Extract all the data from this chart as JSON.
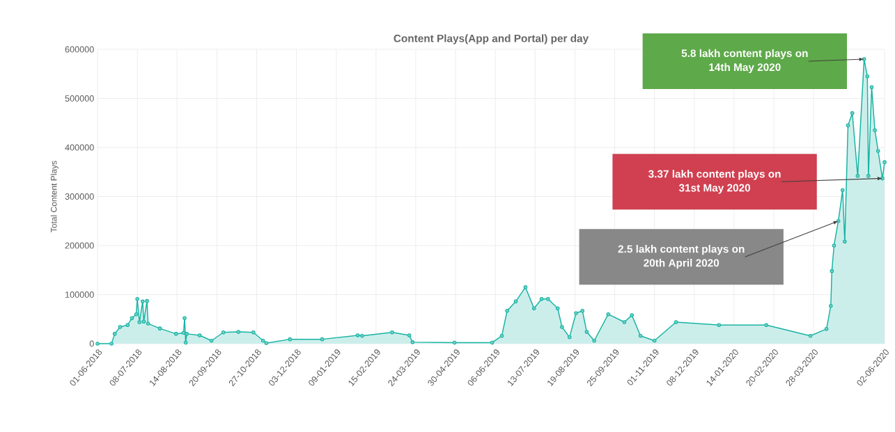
{
  "chart_data": {
    "type": "area",
    "title": "Content Plays(App and Portal) per day",
    "ylabel": "Total Content Plays",
    "x": [
      "2018-06-01",
      "2018-06-14",
      "2018-06-17",
      "2018-06-22",
      "2018-06-29",
      "2018-07-03",
      "2018-07-07",
      "2018-07-08",
      "2018-07-10",
      "2018-07-13",
      "2018-07-14",
      "2018-07-17",
      "2018-07-18",
      "2018-07-29",
      "2018-08-13",
      "2018-08-20",
      "2018-08-21",
      "2018-08-22",
      "2018-08-23",
      "2018-09-04",
      "2018-09-15",
      "2018-09-26",
      "2018-10-10",
      "2018-10-24",
      "2018-11-02",
      "2018-11-05",
      "2018-11-27",
      "2018-12-27",
      "2019-01-29",
      "2019-02-02",
      "2019-03-02",
      "2019-03-18",
      "2019-03-21",
      "2019-04-29",
      "2019-06-03",
      "2019-06-12",
      "2019-06-17",
      "2019-06-25",
      "2019-07-04",
      "2019-07-12",
      "2019-07-19",
      "2019-07-25",
      "2019-08-03",
      "2019-08-07",
      "2019-08-14",
      "2019-08-20",
      "2019-08-26",
      "2019-08-30",
      "2019-09-06",
      "2019-09-19",
      "2019-10-04",
      "2019-10-11",
      "2019-10-19",
      "2019-11-01",
      "2019-11-21",
      "2019-12-31",
      "2020-02-13",
      "2020-03-25",
      "2020-04-09",
      "2020-04-13",
      "2020-04-14",
      "2020-04-16",
      "2020-04-20",
      "2020-04-24",
      "2020-04-26",
      "2020-04-29",
      "2020-05-03",
      "2020-05-08",
      "2020-05-14",
      "2020-05-17",
      "2020-05-18",
      "2020-05-21",
      "2020-05-24",
      "2020-05-27",
      "2020-05-31",
      "2020-06-02"
    ],
    "series": [
      {
        "color": "#17b3a3",
        "values": [
          0,
          0,
          20000,
          34000,
          38000,
          52000,
          60000,
          91000,
          44000,
          86000,
          45000,
          87000,
          41000,
          31000,
          20000,
          22000,
          52000,
          2000,
          20000,
          17000,
          6000,
          23000,
          24000,
          23000,
          6000,
          1000,
          9000,
          9000,
          17000,
          16000,
          23000,
          17000,
          3000,
          2000,
          2000,
          16000,
          67000,
          86000,
          115000,
          72000,
          91000,
          91000,
          72000,
          34000,
          13000,
          62000,
          67000,
          24000,
          6000,
          60000,
          44000,
          58000,
          16000,
          6000,
          44000,
          38000,
          38000,
          16000,
          30000,
          77000,
          148000,
          200000,
          250000,
          313000,
          208000,
          445000,
          470000,
          342000,
          580000,
          545000,
          342000,
          523000,
          435000,
          393000,
          337000,
          370000
        ]
      }
    ],
    "xlim": [
      "2018-06-01",
      "2020-06-02"
    ],
    "xticks": [
      {
        "value": "2018-06-01",
        "label": "01-06-2018"
      },
      {
        "value": "2018-07-08",
        "label": "08-07-2018"
      },
      {
        "value": "2018-08-14",
        "label": "14-08-2018"
      },
      {
        "value": "2018-09-20",
        "label": "20-09-2018"
      },
      {
        "value": "2018-10-27",
        "label": "27-10-2018"
      },
      {
        "value": "2018-12-03",
        "label": "03-12-2018"
      },
      {
        "value": "2019-01-09",
        "label": "09-01-2019"
      },
      {
        "value": "2019-02-15",
        "label": "15-02-2019"
      },
      {
        "value": "2019-03-24",
        "label": "24-03-2019"
      },
      {
        "value": "2019-04-30",
        "label": "30-04-2019"
      },
      {
        "value": "2019-06-06",
        "label": "06-06-2019"
      },
      {
        "value": "2019-07-13",
        "label": "13-07-2019"
      },
      {
        "value": "2019-08-19",
        "label": "19-08-2019"
      },
      {
        "value": "2019-09-25",
        "label": "25-09-2019"
      },
      {
        "value": "2019-11-01",
        "label": "01-11-2019"
      },
      {
        "value": "2019-12-08",
        "label": "08-12-2019"
      },
      {
        "value": "2020-01-14",
        "label": "14-01-2020"
      },
      {
        "value": "2020-02-20",
        "label": "20-02-2020"
      },
      {
        "value": "2020-03-28",
        "label": "28-03-2020"
      },
      {
        "value": "2020-06-02",
        "label": "02-06-2020"
      }
    ],
    "ylim": [
      0,
      600000
    ],
    "yticks": [
      0,
      100000,
      200000,
      300000,
      400000,
      500000,
      600000
    ],
    "grid": true,
    "marker": "circle",
    "annotations": [
      {
        "text": "5.8 lakh content plays on 14th May 2020",
        "x": "2020-05-14",
        "y": 580000
      },
      {
        "text": "3.37 lakh content plays on 31st May 2020",
        "x": "2020-05-31",
        "y": 337000
      },
      {
        "text": "2.5 lakh content plays on 20th April 2020",
        "x": "2020-04-20",
        "y": 250000
      }
    ]
  }
}
